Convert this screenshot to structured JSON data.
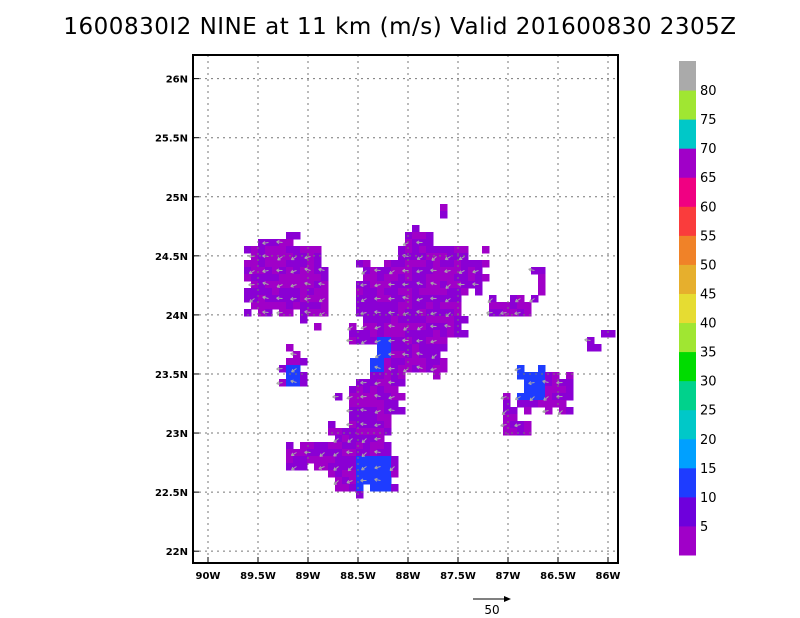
{
  "title": "1600830I2 NINE at 11 km (m/s) Valid 201600830 2305Z",
  "map": {
    "lon_range": [
      -90.15,
      -85.9
    ],
    "lat_range": [
      21.9,
      26.2
    ],
    "lon_ticks": [
      {
        "value": -90,
        "label": "90W"
      },
      {
        "value": -89.5,
        "label": "89.5W"
      },
      {
        "value": -89,
        "label": "89W"
      },
      {
        "value": -88.5,
        "label": "88.5W"
      },
      {
        "value": -88,
        "label": "88W"
      },
      {
        "value": -87.5,
        "label": "87.5W"
      },
      {
        "value": -87,
        "label": "87W"
      },
      {
        "value": -86.5,
        "label": "86.5W"
      },
      {
        "value": -86,
        "label": "86W"
      }
    ],
    "lat_ticks": [
      {
        "value": 22,
        "label": "22N"
      },
      {
        "value": 22.5,
        "label": "22.5N"
      },
      {
        "value": 23,
        "label": "23N"
      },
      {
        "value": 23.5,
        "label": "23.5N"
      },
      {
        "value": 24,
        "label": "24N"
      },
      {
        "value": 24.5,
        "label": "24.5N"
      },
      {
        "value": 25,
        "label": "25N"
      },
      {
        "value": 25.5,
        "label": "25.5N"
      },
      {
        "value": 26,
        "label": "26N"
      }
    ],
    "grid": "dotted",
    "arrow_color": "#a8a8a8"
  },
  "colorbar": {
    "labels": [
      "5",
      "10",
      "15",
      "20",
      "25",
      "30",
      "35",
      "40",
      "45",
      "50",
      "55",
      "60",
      "65",
      "70",
      "75",
      "80"
    ],
    "colors": [
      "#a000c8",
      "#6e00dc",
      "#1e3cff",
      "#00a0ff",
      "#00c8c8",
      "#00d28c",
      "#00dc00",
      "#a0e632",
      "#e6dc32",
      "#e6af2d",
      "#f08228",
      "#fa3c3c",
      "#f00082",
      "#a000c8",
      "#00c8c8",
      "#a0e632",
      "#aaaaaa"
    ]
  },
  "scale_vector": {
    "label": "50"
  },
  "wind_field": [
    {
      "region": "west",
      "lon": -89.33,
      "lat": 24.25,
      "speed": 5
    },
    {
      "region": "central",
      "lon": -87.9,
      "lat": 23.95,
      "speed": 5
    },
    {
      "region": "south-central",
      "lon": -88.32,
      "lat": 22.95,
      "speed": 5
    },
    {
      "region": "south-central-core",
      "lon": -88.2,
      "lat": 22.65,
      "speed": 10
    },
    {
      "region": "east",
      "lon": -86.62,
      "lat": 23.3,
      "speed": 10
    },
    {
      "region": "west-small",
      "lon": -89.05,
      "lat": 23.5,
      "speed": 10
    }
  ]
}
